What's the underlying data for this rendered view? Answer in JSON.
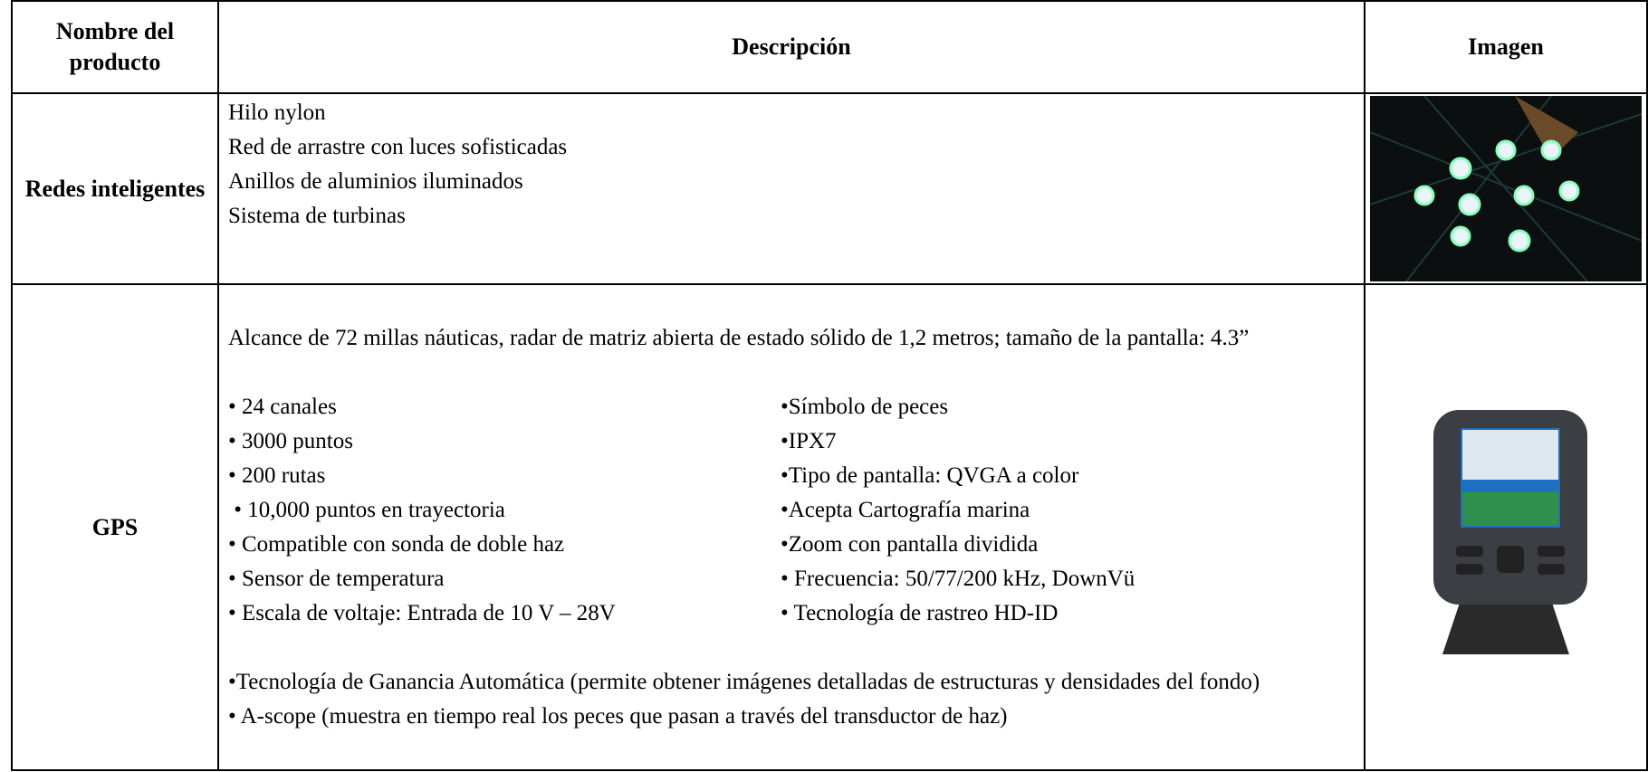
{
  "table": {
    "headers": [
      "Nombre del producto",
      "Descripción",
      "Imagen"
    ],
    "rows": [
      {
        "name": "Redes inteligentes",
        "lines": [
          "Hilo nylon",
          "Red de arrastre con luces sofisticadas",
          "Anillos de aluminios iluminados",
          "Sistema de turbinas"
        ]
      },
      {
        "name": "GPS",
        "intro": "Alcance de 72 millas náuticas, radar de matriz abierta  de estado sólido de 1,2 metros; tamaño de la pantalla: 4.3”",
        "left": [
          "• 24 canales",
          "• 3000 puntos",
          "• 200 rutas",
          " • 10,000 puntos en trayectoria",
          "• Compatible con sonda de doble haz",
          "• Sensor de temperatura",
          "• Escala de voltaje: Entrada de 10 V – 28V"
        ],
        "right": [
          "•Símbolo de peces",
          "•IPX7",
          "•Tipo de pantalla: QVGA a color",
          "•Acepta Cartografía marina",
          "•Zoom con pantalla dividida",
          "• Frecuencia: 50/77/200 kHz, DownVü",
          "• Tecnología de rastreo HD-ID"
        ],
        "notes": [
          "•Tecnología de Ganancia Automática (permite obtener imágenes detalladas de estructuras y densidades del fondo)",
          "• A-scope (muestra en tiempo real los peces que pasan a través del transductor de haz)"
        ]
      }
    ]
  }
}
